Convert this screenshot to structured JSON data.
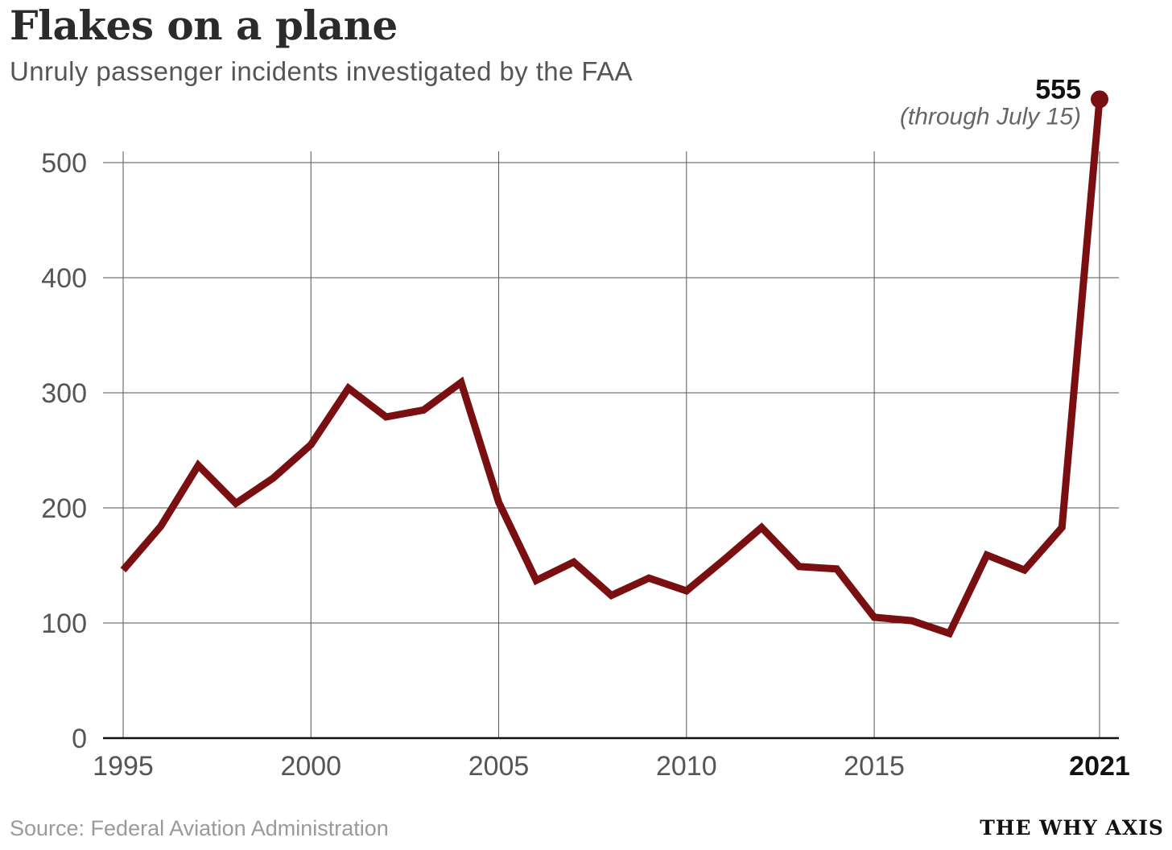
{
  "header": {
    "title": "Flakes on a plane",
    "subtitle": "Unruly passenger incidents investigated by the FAA"
  },
  "footer": {
    "source": "Source: Federal Aviation Administration",
    "brand": "THE WHY AXIS"
  },
  "colors": {
    "line": "#7a0f12",
    "grid": "#555555",
    "axis": "#111111"
  },
  "chart_data": {
    "type": "line",
    "title": "Flakes on a plane",
    "subtitle": "Unruly passenger incidents investigated by the FAA",
    "xlabel": "",
    "ylabel": "",
    "x": [
      1995,
      1996,
      1997,
      1998,
      1999,
      2000,
      2001,
      2002,
      2003,
      2004,
      2005,
      2006,
      2007,
      2008,
      2009,
      2010,
      2011,
      2012,
      2013,
      2014,
      2015,
      2016,
      2017,
      2018,
      2019,
      2020,
      2021
    ],
    "series": [
      {
        "name": "Unruly passenger incidents",
        "values": [
          146,
          184,
          237,
          204,
          226,
          255,
          304,
          279,
          285,
          309,
          205,
          137,
          153,
          124,
          139,
          128,
          155,
          183,
          149,
          147,
          105,
          102,
          91,
          159,
          146,
          183,
          555
        ]
      }
    ],
    "xlim": [
      1995,
      2021.5
    ],
    "ylim": [
      0,
      510
    ],
    "x_ticks": [
      "1995",
      "2000",
      "2005",
      "2010",
      "2015",
      "2021"
    ],
    "x_tick_values": [
      1995,
      2000,
      2005,
      2010,
      2015,
      2021
    ],
    "bold_x_tick": "2021",
    "y_ticks": [
      "0",
      "100",
      "200",
      "300",
      "400",
      "500"
    ],
    "y_tick_values": [
      0,
      100,
      200,
      300,
      400,
      500
    ],
    "grid": true,
    "annotation": {
      "value_label": "555",
      "note": "(through July 15)"
    }
  }
}
